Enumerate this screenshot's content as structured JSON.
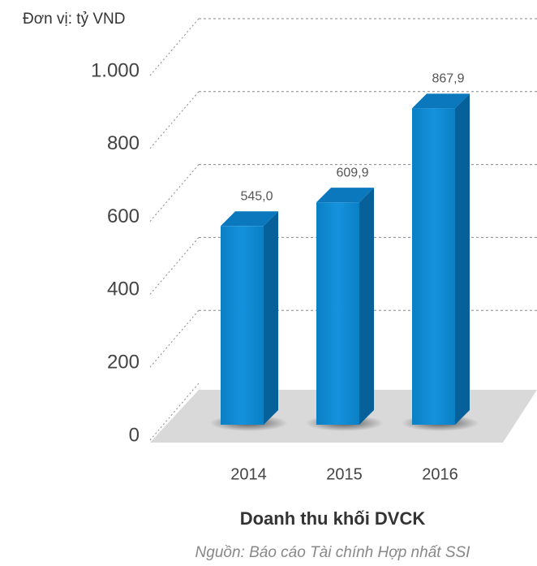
{
  "chart_data": {
    "type": "bar3d",
    "unit_label": "Đơn vị: tỷ VND",
    "title": "Doanh thu khối DVCK",
    "source": "Nguồn: Báo cáo Tài chính Hợp nhất SSI",
    "categories": [
      "2014",
      "2015",
      "2016"
    ],
    "values": [
      545.0,
      609.9,
      867.9
    ],
    "value_labels": [
      "545,0",
      "609,9",
      "867,9"
    ],
    "color": "#0a86cf",
    "ylim": [
      0,
      1000
    ],
    "yticks": [
      0,
      200,
      400,
      600,
      800,
      {
        "value": 1000,
        "label": "1.000"
      }
    ],
    "grid": true
  }
}
